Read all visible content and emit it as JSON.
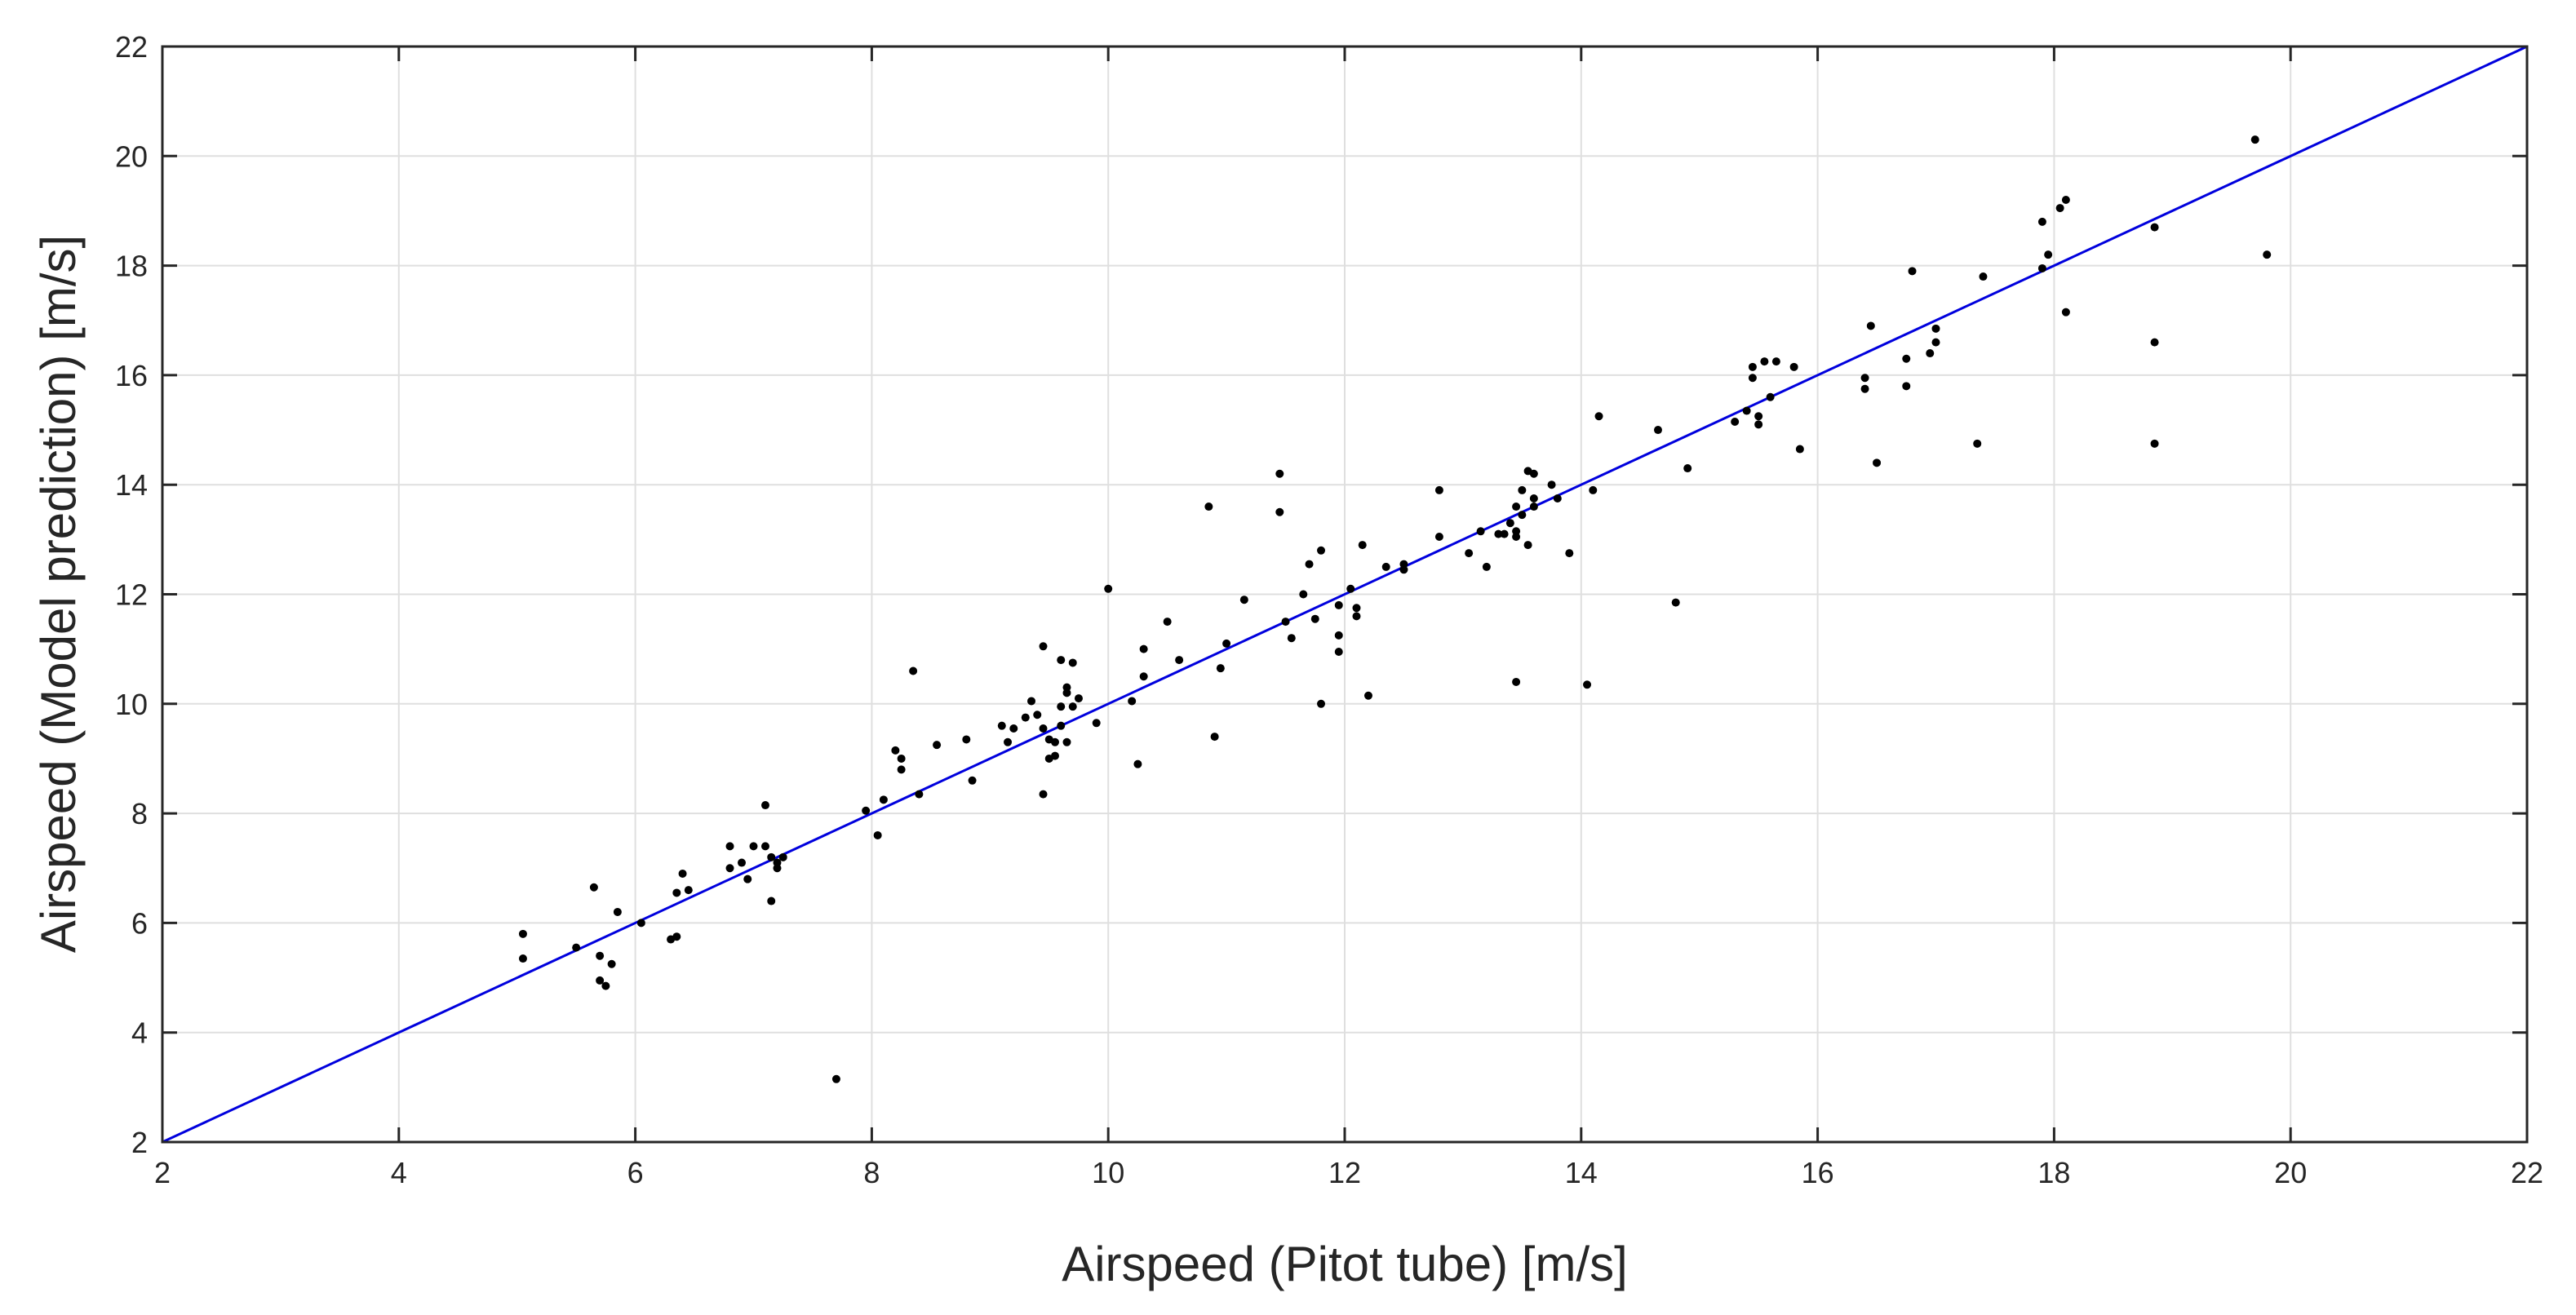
{
  "chart_data": {
    "type": "scatter",
    "title": "",
    "xlabel": "Airspeed (Pitot tube) [m/s]",
    "ylabel": "Airspeed (Model prediction) [m/s]",
    "xlim": [
      2,
      22
    ],
    "ylim": [
      2,
      22
    ],
    "xticks": [
      2,
      4,
      6,
      8,
      10,
      12,
      14,
      16,
      18,
      20,
      22
    ],
    "yticks": [
      2,
      4,
      6,
      8,
      10,
      12,
      14,
      16,
      18,
      20,
      22
    ],
    "grid": true,
    "colors": {
      "points": "#000000",
      "reference_line": "#0000dd",
      "grid": "#dfdfdf",
      "axes": "#262626"
    },
    "series": [
      {
        "name": "measurements",
        "kind": "scatter",
        "points": [
          [
            5.05,
            5.8
          ],
          [
            5.05,
            5.35
          ],
          [
            5.5,
            5.55
          ],
          [
            5.65,
            6.65
          ],
          [
            5.7,
            5.4
          ],
          [
            5.7,
            4.95
          ],
          [
            5.75,
            4.85
          ],
          [
            5.8,
            5.25
          ],
          [
            5.85,
            6.2
          ],
          [
            6.05,
            6.0
          ],
          [
            6.3,
            5.7
          ],
          [
            6.35,
            5.75
          ],
          [
            6.35,
            6.55
          ],
          [
            6.4,
            6.9
          ],
          [
            6.45,
            6.6
          ],
          [
            6.8,
            7.4
          ],
          [
            6.8,
            7.0
          ],
          [
            6.9,
            7.1
          ],
          [
            6.95,
            6.8
          ],
          [
            7.0,
            7.4
          ],
          [
            7.1,
            7.4
          ],
          [
            7.1,
            8.15
          ],
          [
            7.15,
            6.4
          ],
          [
            7.15,
            7.2
          ],
          [
            7.2,
            7.0
          ],
          [
            7.2,
            7.1
          ],
          [
            7.25,
            7.2
          ],
          [
            7.7,
            3.15
          ],
          [
            7.95,
            8.05
          ],
          [
            8.05,
            7.6
          ],
          [
            8.1,
            8.25
          ],
          [
            8.2,
            9.15
          ],
          [
            8.25,
            8.8
          ],
          [
            8.25,
            9.0
          ],
          [
            8.35,
            10.6
          ],
          [
            8.4,
            8.35
          ],
          [
            8.55,
            9.25
          ],
          [
            8.8,
            9.35
          ],
          [
            8.85,
            8.6
          ],
          [
            9.1,
            9.6
          ],
          [
            9.15,
            9.3
          ],
          [
            9.2,
            9.55
          ],
          [
            9.3,
            9.75
          ],
          [
            9.35,
            10.05
          ],
          [
            9.4,
            9.8
          ],
          [
            9.45,
            11.05
          ],
          [
            9.45,
            8.35
          ],
          [
            9.45,
            9.55
          ],
          [
            9.5,
            9.0
          ],
          [
            9.5,
            9.35
          ],
          [
            9.55,
            9.3
          ],
          [
            9.55,
            9.05
          ],
          [
            9.6,
            9.95
          ],
          [
            9.6,
            10.8
          ],
          [
            9.6,
            9.6
          ],
          [
            9.65,
            9.3
          ],
          [
            9.65,
            10.2
          ],
          [
            9.65,
            10.3
          ],
          [
            9.7,
            9.95
          ],
          [
            9.7,
            10.75
          ],
          [
            9.75,
            10.1
          ],
          [
            9.9,
            9.65
          ],
          [
            10.0,
            12.1
          ],
          [
            10.2,
            10.05
          ],
          [
            10.25,
            8.9
          ],
          [
            10.3,
            11.0
          ],
          [
            10.3,
            10.5
          ],
          [
            10.5,
            11.5
          ],
          [
            10.6,
            10.8
          ],
          [
            10.85,
            13.6
          ],
          [
            10.9,
            9.4
          ],
          [
            10.95,
            10.65
          ],
          [
            11.0,
            11.1
          ],
          [
            11.15,
            11.9
          ],
          [
            11.45,
            13.5
          ],
          [
            11.45,
            14.2
          ],
          [
            11.5,
            11.5
          ],
          [
            11.55,
            11.2
          ],
          [
            11.65,
            12.0
          ],
          [
            11.7,
            12.55
          ],
          [
            11.75,
            11.55
          ],
          [
            11.8,
            12.8
          ],
          [
            11.8,
            10.0
          ],
          [
            11.95,
            11.8
          ],
          [
            11.95,
            11.25
          ],
          [
            11.95,
            10.95
          ],
          [
            12.05,
            12.1
          ],
          [
            12.1,
            11.75
          ],
          [
            12.1,
            11.6
          ],
          [
            12.15,
            12.9
          ],
          [
            12.2,
            10.15
          ],
          [
            12.35,
            12.5
          ],
          [
            12.5,
            12.55
          ],
          [
            12.5,
            12.45
          ],
          [
            12.8,
            13.05
          ],
          [
            12.8,
            13.9
          ],
          [
            13.05,
            12.75
          ],
          [
            13.15,
            13.15
          ],
          [
            13.2,
            12.5
          ],
          [
            13.3,
            13.1
          ],
          [
            13.35,
            13.1
          ],
          [
            13.4,
            13.3
          ],
          [
            13.45,
            13.6
          ],
          [
            13.45,
            13.15
          ],
          [
            13.45,
            13.05
          ],
          [
            13.45,
            10.4
          ],
          [
            13.5,
            13.9
          ],
          [
            13.5,
            13.45
          ],
          [
            13.55,
            14.25
          ],
          [
            13.55,
            12.9
          ],
          [
            13.6,
            13.75
          ],
          [
            13.6,
            13.6
          ],
          [
            13.6,
            14.2
          ],
          [
            13.75,
            14.0
          ],
          [
            13.8,
            13.75
          ],
          [
            13.9,
            12.75
          ],
          [
            14.05,
            10.35
          ],
          [
            14.1,
            13.9
          ],
          [
            14.15,
            15.25
          ],
          [
            14.65,
            15.0
          ],
          [
            14.8,
            11.85
          ],
          [
            14.9,
            14.3
          ],
          [
            15.3,
            15.15
          ],
          [
            15.4,
            15.35
          ],
          [
            15.45,
            16.15
          ],
          [
            15.45,
            15.95
          ],
          [
            15.5,
            15.25
          ],
          [
            15.5,
            15.1
          ],
          [
            15.55,
            16.25
          ],
          [
            15.6,
            15.6
          ],
          [
            15.65,
            16.25
          ],
          [
            15.8,
            16.15
          ],
          [
            15.85,
            14.65
          ],
          [
            16.4,
            15.75
          ],
          [
            16.4,
            15.95
          ],
          [
            16.45,
            16.9
          ],
          [
            16.5,
            14.4
          ],
          [
            16.75,
            16.3
          ],
          [
            16.75,
            15.8
          ],
          [
            16.8,
            17.9
          ],
          [
            16.95,
            16.4
          ],
          [
            17.0,
            16.6
          ],
          [
            17.0,
            16.85
          ],
          [
            17.35,
            14.75
          ],
          [
            17.4,
            17.8
          ],
          [
            17.9,
            17.95
          ],
          [
            17.9,
            18.8
          ],
          [
            17.95,
            18.2
          ],
          [
            18.05,
            19.05
          ],
          [
            18.1,
            19.2
          ],
          [
            18.1,
            17.15
          ],
          [
            18.85,
            18.7
          ],
          [
            18.85,
            16.6
          ],
          [
            18.85,
            14.75
          ],
          [
            19.7,
            20.3
          ],
          [
            19.8,
            18.2
          ]
        ]
      },
      {
        "name": "reference y = x",
        "kind": "line",
        "points": [
          [
            2,
            2
          ],
          [
            22,
            22
          ]
        ]
      }
    ]
  }
}
